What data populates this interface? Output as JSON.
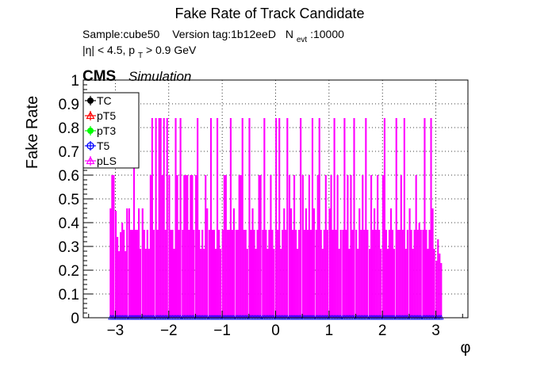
{
  "chart_data": {
    "type": "bar",
    "title": "Fake Rate of Track Candidate",
    "info_line1": {
      "sample": "Sample:cube50",
      "version": "Version tag:1b12eeD",
      "nevt_label": "N",
      "nevt_sub": "evt",
      "nevt_value": ":10000"
    },
    "info_line2": {
      "eta_part": "|η| < 4.5, p",
      "pt_sub": "T",
      "pt_cut": " > 0.9 GeV"
    },
    "cms_label": "CMS",
    "sim_label": "Simulation",
    "xlabel": "φ",
    "ylabel": "Fake Rate",
    "xlim": [
      -3.6,
      3.6
    ],
    "ylim": [
      0,
      1
    ],
    "x_ticks": [
      "−3",
      "−2",
      "−1",
      "0",
      "1",
      "2",
      "3"
    ],
    "y_ticks": [
      "0",
      "0.1",
      "0.2",
      "0.3",
      "0.4",
      "0.5",
      "0.6",
      "0.7",
      "0.8",
      "0.9",
      "1"
    ],
    "grid": true,
    "legend_position": "top-left",
    "legend": [
      {
        "name": "TC",
        "color": "#000000",
        "marker": "circle"
      },
      {
        "name": "pT5",
        "color": "#ff0000",
        "marker": "triangle"
      },
      {
        "name": "pT3",
        "color": "#00ff00",
        "marker": "circle"
      },
      {
        "name": "T5",
        "color": "#0000ff",
        "marker": "circle-open"
      },
      {
        "name": "pLS",
        "color": "#ff00ff",
        "marker": "triangle"
      }
    ],
    "plotted_series": {
      "name": "pLS",
      "color": "#ff00ff",
      "bin_width": 0.0314,
      "x": [
        -3.09,
        -3.06,
        -3.03,
        -2.99,
        -2.96,
        -2.93,
        -2.9,
        -2.87,
        -2.84,
        -2.81,
        -2.78,
        -2.74,
        -2.71,
        -2.68,
        -2.65,
        -2.62,
        -2.59,
        -2.56,
        -2.53,
        -2.49,
        -2.46,
        -2.43,
        -2.4,
        -2.37,
        -2.34,
        -2.31,
        -2.28,
        -2.24,
        -2.21,
        -2.18,
        -2.15,
        -2.12,
        -2.09,
        -2.06,
        -2.03,
        -1.99,
        -1.96,
        -1.93,
        -1.9,
        -1.87,
        -1.84,
        -1.81,
        -1.78,
        -1.74,
        -1.71,
        -1.68,
        -1.65,
        -1.62,
        -1.59,
        -1.56,
        -1.53,
        -1.49,
        -1.46,
        -1.43,
        -1.4,
        -1.37,
        -1.34,
        -1.31,
        -1.28,
        -1.24,
        -1.21,
        -1.18,
        -1.15,
        -1.12,
        -1.09,
        -1.06,
        -1.03,
        -0.99,
        -0.96,
        -0.93,
        -0.9,
        -0.87,
        -0.84,
        -0.81,
        -0.78,
        -0.74,
        -0.71,
        -0.68,
        -0.65,
        -0.62,
        -0.59,
        -0.56,
        -0.53,
        -0.49,
        -0.46,
        -0.43,
        -0.4,
        -0.37,
        -0.34,
        -0.31,
        -0.28,
        -0.24,
        -0.21,
        -0.18,
        -0.15,
        -0.12,
        -0.09,
        -0.06,
        -0.03,
        0.01,
        0.04,
        0.07,
        0.1,
        0.13,
        0.16,
        0.19,
        0.22,
        0.26,
        0.29,
        0.32,
        0.35,
        0.38,
        0.41,
        0.44,
        0.47,
        0.51,
        0.54,
        0.57,
        0.6,
        0.63,
        0.66,
        0.69,
        0.72,
        0.76,
        0.79,
        0.82,
        0.85,
        0.88,
        0.91,
        0.94,
        0.97,
        1.01,
        1.04,
        1.07,
        1.1,
        1.13,
        1.16,
        1.19,
        1.22,
        1.26,
        1.29,
        1.32,
        1.35,
        1.38,
        1.41,
        1.44,
        1.47,
        1.51,
        1.54,
        1.57,
        1.6,
        1.63,
        1.66,
        1.69,
        1.72,
        1.76,
        1.79,
        1.82,
        1.85,
        1.88,
        1.91,
        1.94,
        1.97,
        2.01,
        2.04,
        2.07,
        2.1,
        2.13,
        2.16,
        2.19,
        2.22,
        2.26,
        2.29,
        2.32,
        2.35,
        2.38,
        2.41,
        2.44,
        2.47,
        2.51,
        2.54,
        2.57,
        2.6,
        2.63,
        2.66,
        2.69,
        2.72,
        2.76,
        2.79,
        2.82,
        2.85,
        2.88,
        2.91,
        2.94,
        2.97,
        3.01,
        3.04,
        3.07,
        3.1
      ],
      "values": [
        0.46,
        0.6,
        0.6,
        0.45,
        0.34,
        0.28,
        0.36,
        0.4,
        0.37,
        0.28,
        0.46,
        0.46,
        0.37,
        0.37,
        0.84,
        0.37,
        0.37,
        0.46,
        0.29,
        0.46,
        0.37,
        0.29,
        0.37,
        0.29,
        0.6,
        0.84,
        0.37,
        0.84,
        0.37,
        0.84,
        0.84,
        0.6,
        0.84,
        0.37,
        0.84,
        0.6,
        0.37,
        0.37,
        0.29,
        0.84,
        0.6,
        0.37,
        0.84,
        0.37,
        0.6,
        0.6,
        0.6,
        0.37,
        0.6,
        0.6,
        0.37,
        0.6,
        0.84,
        0.37,
        0.29,
        0.37,
        0.29,
        0.6,
        0.46,
        0.37,
        0.84,
        0.37,
        0.37,
        0.29,
        0.84,
        0.37,
        0.29,
        0.37,
        0.6,
        0.6,
        0.37,
        0.37,
        0.84,
        0.37,
        0.46,
        0.37,
        0.37,
        0.6,
        0.6,
        0.84,
        0.37,
        0.37,
        0.29,
        0.84,
        0.37,
        0.46,
        0.37,
        0.29,
        0.37,
        0.6,
        0.6,
        0.37,
        0.84,
        0.37,
        0.29,
        0.37,
        0.6,
        0.37,
        0.29,
        0.84,
        0.37,
        0.84,
        0.29,
        0.37,
        0.46,
        0.37,
        0.84,
        0.6,
        0.46,
        0.37,
        0.6,
        0.37,
        0.29,
        0.37,
        0.84,
        0.6,
        0.37,
        0.46,
        0.37,
        0.6,
        0.37,
        0.84,
        0.46,
        0.37,
        0.6,
        0.84,
        0.37,
        0.29,
        0.37,
        0.6,
        0.37,
        0.46,
        0.6,
        0.37,
        0.84,
        0.37,
        0.6,
        0.29,
        0.37,
        0.37,
        0.84,
        0.37,
        0.6,
        0.29,
        0.6,
        0.37,
        0.84,
        0.37,
        0.29,
        0.46,
        0.37,
        0.6,
        0.37,
        0.84,
        0.37,
        0.29,
        0.6,
        0.37,
        0.46,
        0.37,
        0.6,
        0.37,
        0.29,
        0.6,
        0.84,
        0.37,
        0.29,
        0.37,
        0.46,
        0.37,
        0.29,
        0.84,
        0.37,
        0.37,
        0.6,
        0.37,
        0.84,
        0.29,
        0.37,
        0.46,
        0.37,
        0.29,
        0.37,
        0.6,
        0.37,
        0.4,
        0.37,
        0.37,
        0.84,
        0.37,
        0.29,
        0.37,
        0.84,
        0.46,
        0.29,
        0.24,
        0.33,
        0.27,
        0.23
      ]
    }
  }
}
